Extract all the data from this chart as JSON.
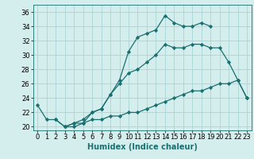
{
  "line1_x": [
    0,
    1,
    2,
    3,
    4,
    5,
    6,
    7,
    8,
    9,
    10,
    11,
    12,
    13,
    14,
    15,
    16,
    17,
    18,
    19
  ],
  "line1_y": [
    23,
    21,
    21,
    20,
    20,
    20.5,
    22,
    22.5,
    24.5,
    26.5,
    30.5,
    32.5,
    33,
    33.5,
    35.5,
    34.5,
    34,
    34,
    34.5,
    34
  ],
  "line2_x": [
    2,
    3,
    4,
    5,
    6,
    7,
    8,
    9,
    10,
    11,
    12,
    13,
    14,
    15,
    16,
    17,
    18,
    19,
    20,
    21,
    22,
    23
  ],
  "line2_y": [
    21,
    20,
    20.5,
    21,
    22,
    22.5,
    24.5,
    26,
    27.5,
    28,
    29,
    30,
    31.5,
    31,
    31,
    31.5,
    31.5,
    31,
    31,
    29,
    26.5,
    24
  ],
  "line3_x": [
    3,
    4,
    5,
    6,
    7,
    8,
    9,
    10,
    11,
    12,
    13,
    14,
    15,
    16,
    17,
    18,
    19,
    20,
    21,
    22,
    23
  ],
  "line3_y": [
    20,
    20.5,
    20.5,
    21,
    21,
    21.5,
    21.5,
    22,
    22,
    22.5,
    23,
    23.5,
    24,
    24.5,
    25,
    25,
    25.5,
    26,
    26,
    26.5,
    24
  ],
  "line_color": "#1a7070",
  "bg_color": "#d4eded",
  "grid_color": "#aad4d4",
  "xlabel": "Humidex (Indice chaleur)",
  "xlim": [
    -0.5,
    23.5
  ],
  "ylim": [
    19.5,
    37
  ],
  "yticks": [
    20,
    22,
    24,
    26,
    28,
    30,
    32,
    34,
    36
  ],
  "xticks": [
    0,
    1,
    2,
    3,
    4,
    5,
    6,
    7,
    8,
    9,
    10,
    11,
    12,
    13,
    14,
    15,
    16,
    17,
    18,
    19,
    20,
    21,
    22,
    23
  ],
  "marker": "D",
  "markersize": 2.2,
  "linewidth": 0.9,
  "xlabel_fontsize": 7,
  "tick_fontsize": 6
}
